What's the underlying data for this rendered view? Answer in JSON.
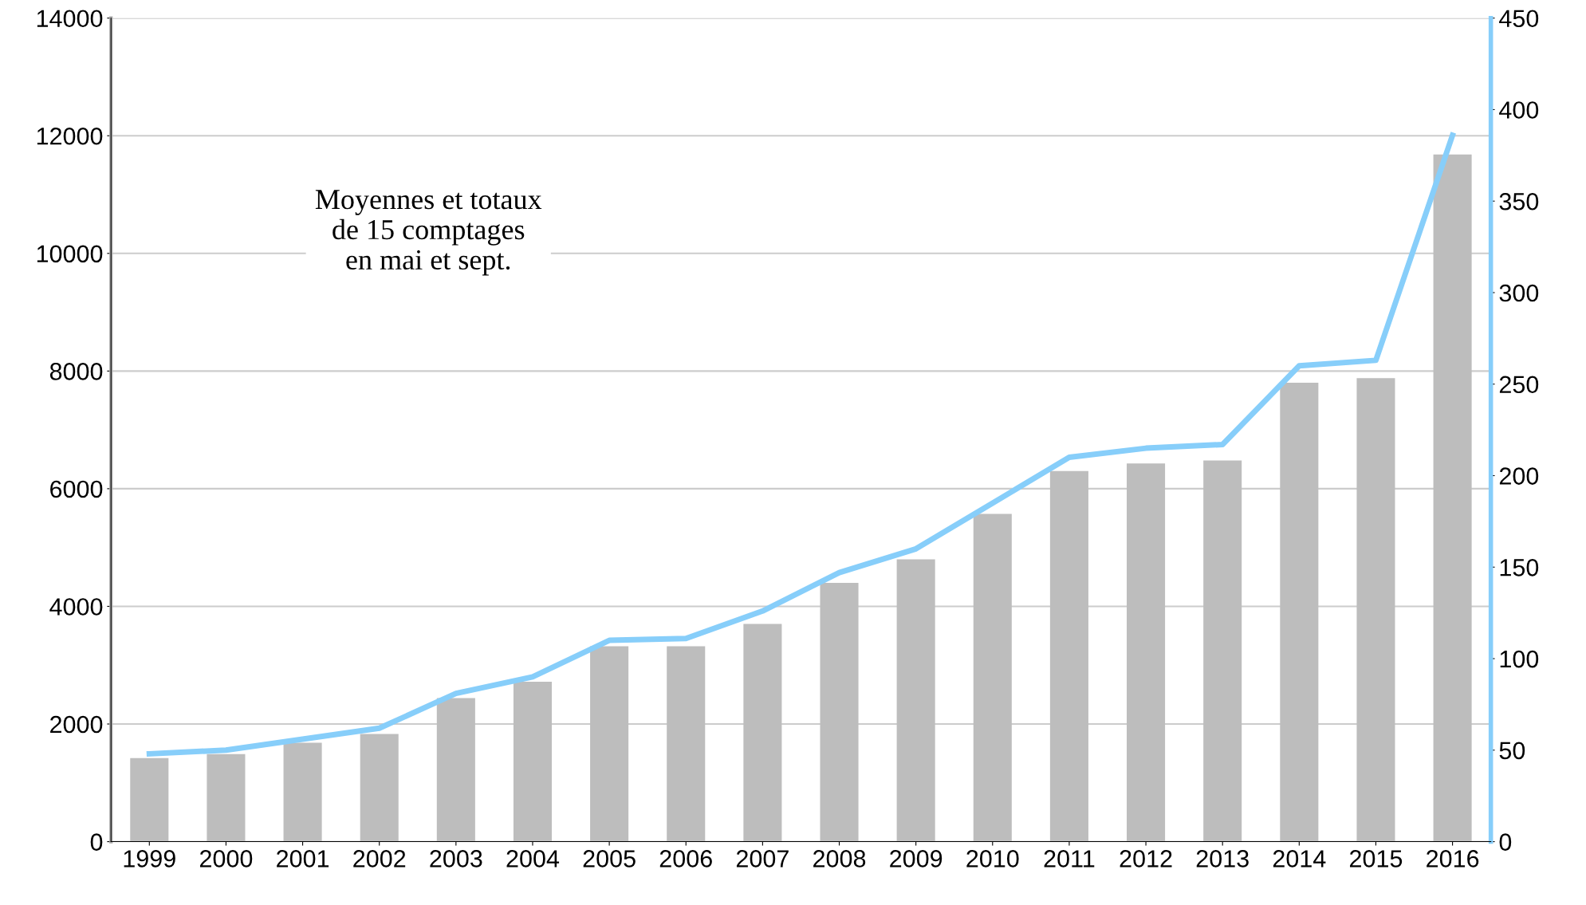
{
  "chart_data": {
    "type": "bar",
    "categories": [
      "1999",
      "2000",
      "2001",
      "2002",
      "2003",
      "2004",
      "2005",
      "2006",
      "2007",
      "2008",
      "2009",
      "2010",
      "2011",
      "2012",
      "2013",
      "2014",
      "2015",
      "2016"
    ],
    "series": [
      {
        "color": "#bdbdbd",
        "values": [
          1420,
          1490,
          1680,
          1830,
          2440,
          2720,
          3320,
          3320,
          3700,
          4400,
          4800,
          5570,
          6300,
          6430,
          6480,
          7800,
          7880,
          11680
        ]
      },
      {
        "type": "line",
        "axis": "y2",
        "color": "#87cefa",
        "values": [
          48,
          50,
          56,
          62,
          81,
          90,
          110,
          111,
          126,
          147,
          160,
          185,
          210,
          215,
          217,
          260,
          263,
          386
        ]
      }
    ],
    "ylim": [
      0,
      14000
    ],
    "yticks": [
      0,
      2000,
      4000,
      6000,
      8000,
      10000,
      12000,
      14000
    ],
    "y2lim": [
      0,
      450
    ],
    "y2ticks": [
      0,
      50,
      100,
      150,
      200,
      250,
      300,
      350,
      400,
      450
    ],
    "grid": "y",
    "legend": false,
    "marker": "none",
    "line_style": "solid",
    "annotations": [
      "Moyennes et totaux\nde 15 comptages\nen mai et sept."
    ]
  }
}
